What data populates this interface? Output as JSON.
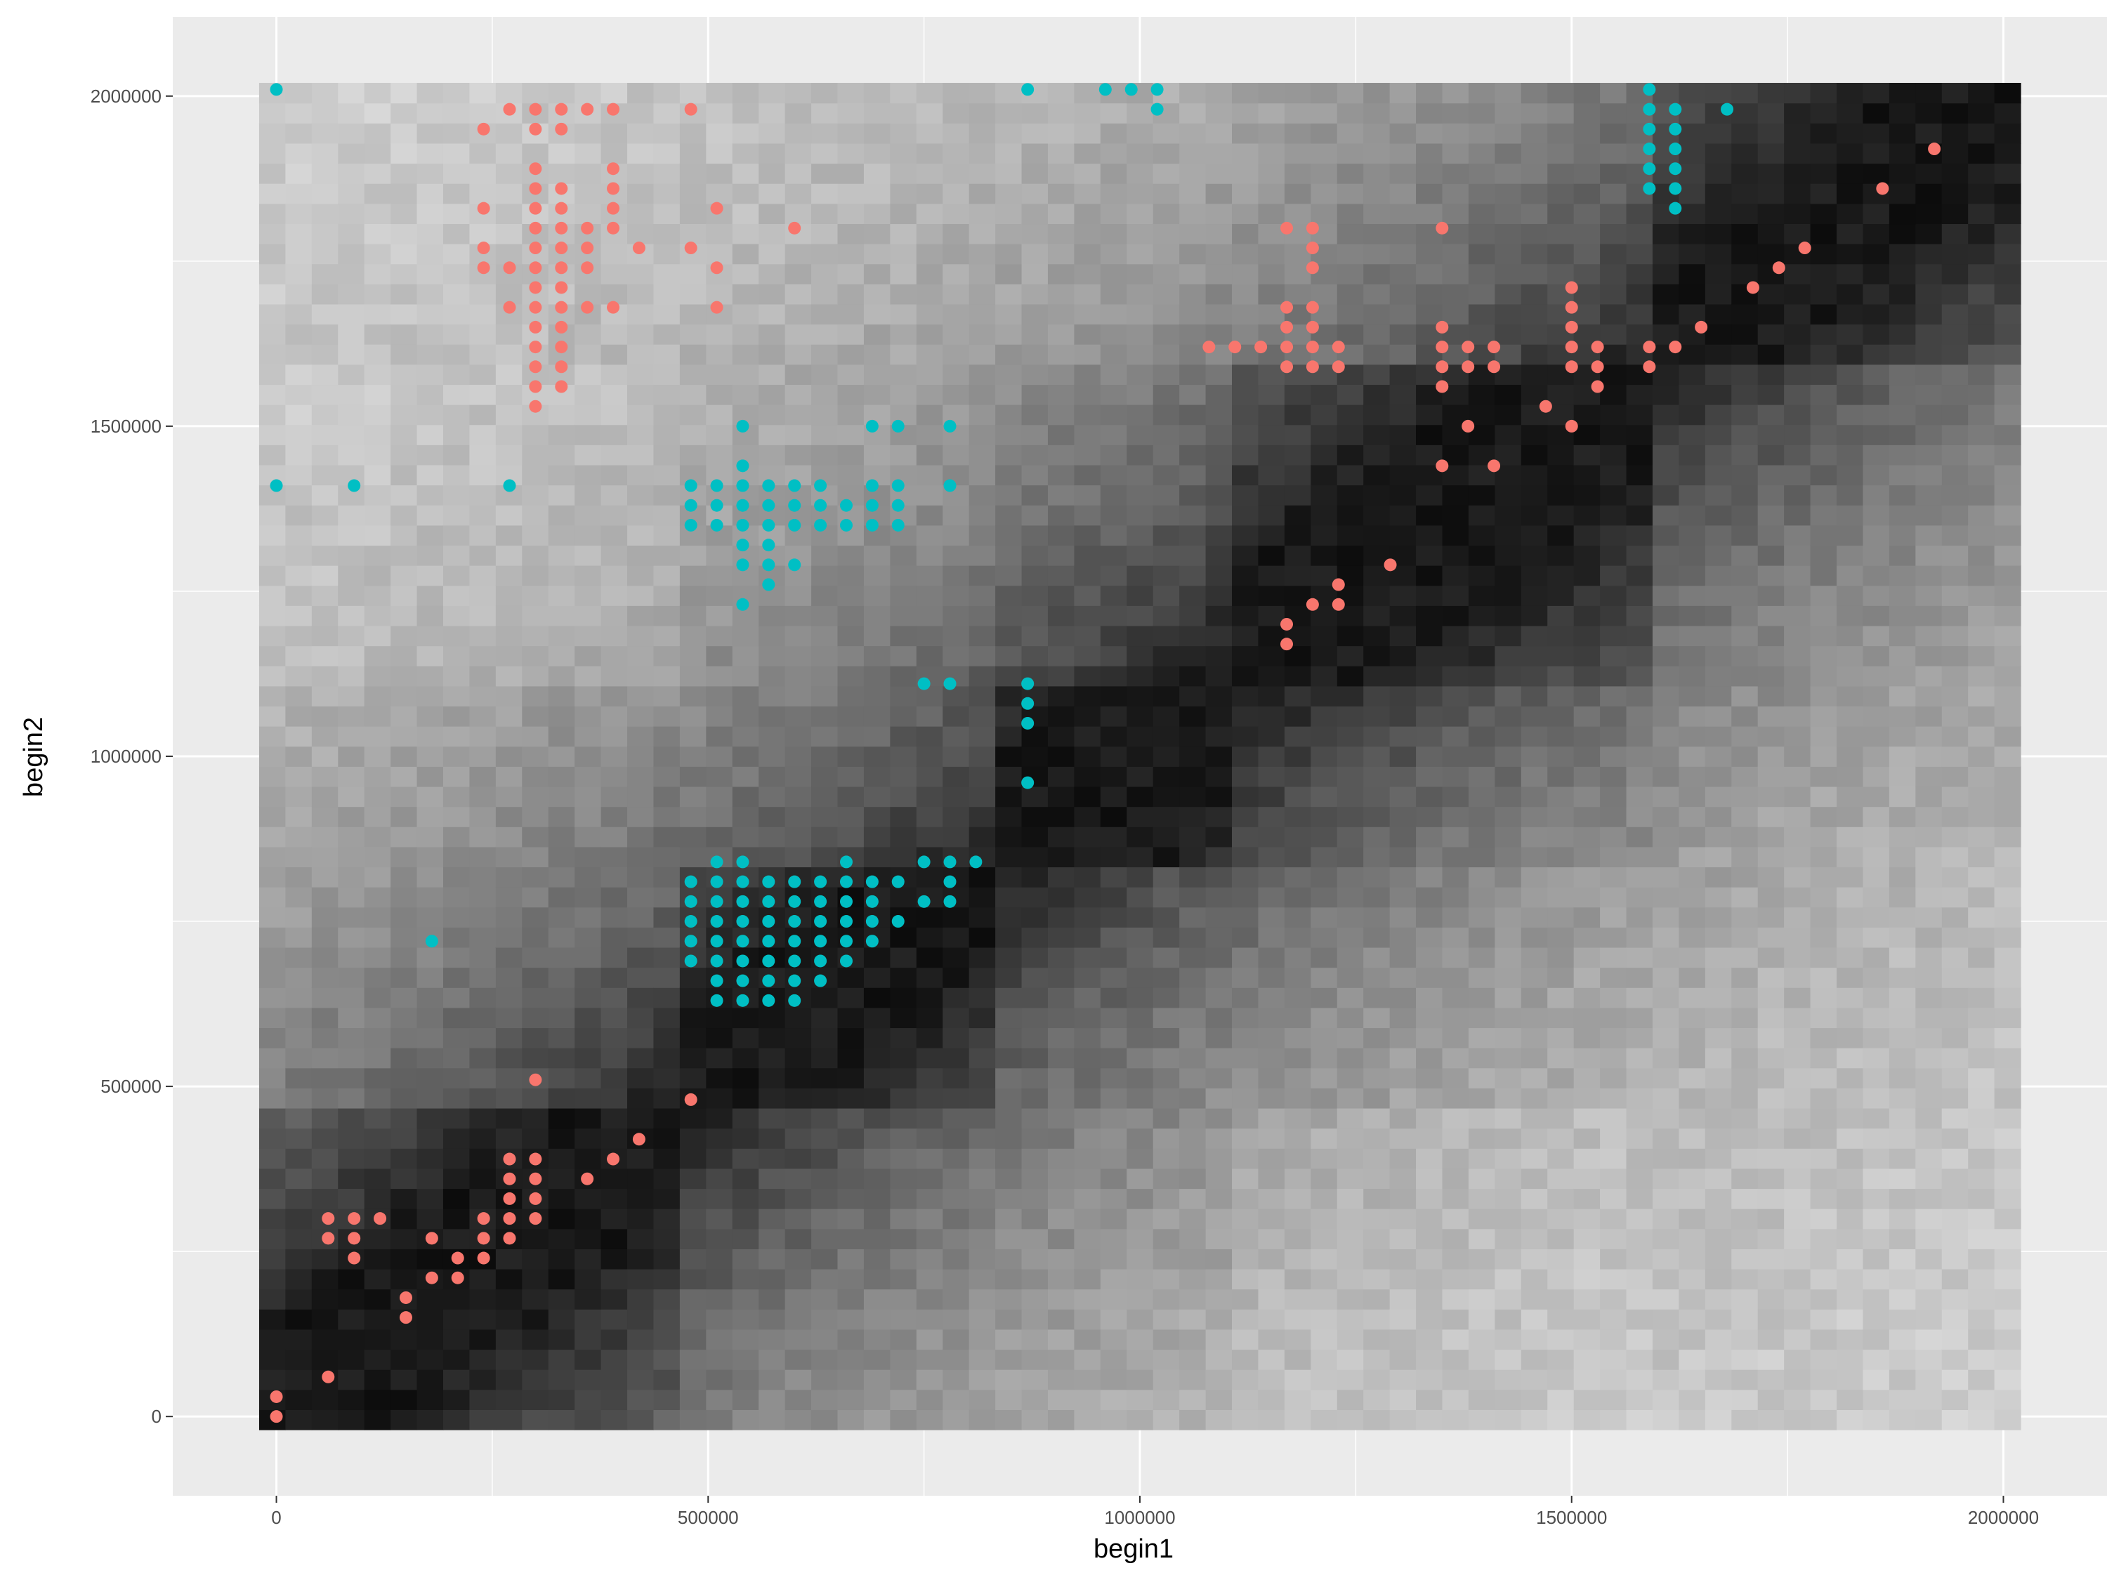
{
  "chart_data": {
    "type": "heatmap",
    "title": "",
    "xlabel": "begin1",
    "ylabel": "begin2",
    "xlim": [
      -120000,
      2120000
    ],
    "ylim": [
      -120000,
      2120000
    ],
    "heatmap_extent": {
      "x": [
        -20000,
        2020000
      ],
      "y": [
        -20000,
        2020000
      ]
    },
    "heatmap_bins": 67,
    "heatmap_scale": "grayscale, darker = higher contact frequency (diagonal darkest)",
    "x_ticks": [
      0,
      500000,
      1000000,
      1500000,
      2000000
    ],
    "x_tick_labels": [
      "0",
      "500000",
      "1000000",
      "1500000",
      "2000000"
    ],
    "y_ticks": [
      0,
      500000,
      1000000,
      1500000,
      2000000
    ],
    "y_tick_labels": [
      "0",
      "500000",
      "1000000",
      "1500000",
      "2000000"
    ],
    "grid": true,
    "legend": "none",
    "colors": {
      "panel": "#ebebeb",
      "grid": "#ffffff",
      "series_red": "#f8766d",
      "series_cyan": "#00bfc4"
    },
    "series": [
      {
        "name": "red",
        "color": "#f8766d",
        "points": [
          [
            0,
            0
          ],
          [
            0,
            30000
          ],
          [
            60000,
            60000
          ],
          [
            60000,
            270000
          ],
          [
            60000,
            300000
          ],
          [
            90000,
            240000
          ],
          [
            90000,
            270000
          ],
          [
            90000,
            300000
          ],
          [
            120000,
            300000
          ],
          [
            150000,
            150000
          ],
          [
            150000,
            180000
          ],
          [
            180000,
            210000
          ],
          [
            180000,
            270000
          ],
          [
            210000,
            210000
          ],
          [
            210000,
            240000
          ],
          [
            240000,
            240000
          ],
          [
            240000,
            270000
          ],
          [
            240000,
            300000
          ],
          [
            270000,
            270000
          ],
          [
            270000,
            300000
          ],
          [
            270000,
            330000
          ],
          [
            270000,
            360000
          ],
          [
            270000,
            390000
          ],
          [
            300000,
            300000
          ],
          [
            300000,
            330000
          ],
          [
            300000,
            360000
          ],
          [
            300000,
            390000
          ],
          [
            300000,
            510000
          ],
          [
            360000,
            360000
          ],
          [
            390000,
            390000
          ],
          [
            420000,
            420000
          ],
          [
            480000,
            480000
          ],
          [
            240000,
            1950000
          ],
          [
            240000,
            1830000
          ],
          [
            240000,
            1770000
          ],
          [
            240000,
            1740000
          ],
          [
            270000,
            1980000
          ],
          [
            270000,
            1740000
          ],
          [
            270000,
            1680000
          ],
          [
            300000,
            1980000
          ],
          [
            300000,
            1950000
          ],
          [
            300000,
            1890000
          ],
          [
            300000,
            1860000
          ],
          [
            300000,
            1830000
          ],
          [
            300000,
            1800000
          ],
          [
            300000,
            1770000
          ],
          [
            300000,
            1740000
          ],
          [
            300000,
            1710000
          ],
          [
            300000,
            1680000
          ],
          [
            300000,
            1650000
          ],
          [
            300000,
            1620000
          ],
          [
            300000,
            1590000
          ],
          [
            300000,
            1560000
          ],
          [
            300000,
            1530000
          ],
          [
            330000,
            1980000
          ],
          [
            330000,
            1950000
          ],
          [
            330000,
            1860000
          ],
          [
            330000,
            1830000
          ],
          [
            330000,
            1800000
          ],
          [
            330000,
            1770000
          ],
          [
            330000,
            1740000
          ],
          [
            330000,
            1710000
          ],
          [
            330000,
            1680000
          ],
          [
            330000,
            1650000
          ],
          [
            330000,
            1620000
          ],
          [
            330000,
            1590000
          ],
          [
            330000,
            1560000
          ],
          [
            360000,
            1980000
          ],
          [
            360000,
            1800000
          ],
          [
            360000,
            1770000
          ],
          [
            360000,
            1740000
          ],
          [
            360000,
            1680000
          ],
          [
            390000,
            1980000
          ],
          [
            390000,
            1890000
          ],
          [
            390000,
            1860000
          ],
          [
            390000,
            1830000
          ],
          [
            390000,
            1800000
          ],
          [
            390000,
            1680000
          ],
          [
            420000,
            1770000
          ],
          [
            480000,
            1980000
          ],
          [
            480000,
            1770000
          ],
          [
            510000,
            1830000
          ],
          [
            510000,
            1740000
          ],
          [
            510000,
            1680000
          ],
          [
            600000,
            1800000
          ],
          [
            1080000,
            1620000
          ],
          [
            1110000,
            1620000
          ],
          [
            1140000,
            1620000
          ],
          [
            1170000,
            1800000
          ],
          [
            1170000,
            1680000
          ],
          [
            1170000,
            1650000
          ],
          [
            1170000,
            1620000
          ],
          [
            1170000,
            1590000
          ],
          [
            1170000,
            1200000
          ],
          [
            1170000,
            1170000
          ],
          [
            1200000,
            1800000
          ],
          [
            1200000,
            1770000
          ],
          [
            1200000,
            1740000
          ],
          [
            1200000,
            1680000
          ],
          [
            1200000,
            1650000
          ],
          [
            1200000,
            1620000
          ],
          [
            1200000,
            1590000
          ],
          [
            1200000,
            1230000
          ],
          [
            1230000,
            1620000
          ],
          [
            1230000,
            1590000
          ],
          [
            1230000,
            1260000
          ],
          [
            1230000,
            1230000
          ],
          [
            1290000,
            1290000
          ],
          [
            1350000,
            1800000
          ],
          [
            1350000,
            1650000
          ],
          [
            1350000,
            1620000
          ],
          [
            1350000,
            1590000
          ],
          [
            1350000,
            1560000
          ],
          [
            1350000,
            1440000
          ],
          [
            1380000,
            1620000
          ],
          [
            1380000,
            1590000
          ],
          [
            1380000,
            1500000
          ],
          [
            1410000,
            1620000
          ],
          [
            1410000,
            1590000
          ],
          [
            1410000,
            1440000
          ],
          [
            1470000,
            1530000
          ],
          [
            1500000,
            1710000
          ],
          [
            1500000,
            1680000
          ],
          [
            1500000,
            1650000
          ],
          [
            1500000,
            1620000
          ],
          [
            1500000,
            1590000
          ],
          [
            1500000,
            1500000
          ],
          [
            1530000,
            1620000
          ],
          [
            1530000,
            1590000
          ],
          [
            1530000,
            1560000
          ],
          [
            1590000,
            1620000
          ],
          [
            1590000,
            1590000
          ],
          [
            1620000,
            1620000
          ],
          [
            1650000,
            1650000
          ],
          [
            1710000,
            1710000
          ],
          [
            1740000,
            1740000
          ],
          [
            1770000,
            1770000
          ],
          [
            1860000,
            1860000
          ],
          [
            1920000,
            1920000
          ]
        ]
      },
      {
        "name": "cyan",
        "color": "#00bfc4",
        "points": [
          [
            0,
            2010000
          ],
          [
            0,
            1410000
          ],
          [
            90000,
            1410000
          ],
          [
            270000,
            1410000
          ],
          [
            180000,
            720000
          ],
          [
            870000,
            2010000
          ],
          [
            960000,
            2010000
          ],
          [
            990000,
            2010000
          ],
          [
            1020000,
            2010000
          ],
          [
            1020000,
            1980000
          ],
          [
            1590000,
            2010000
          ],
          [
            1590000,
            1980000
          ],
          [
            1590000,
            1950000
          ],
          [
            1590000,
            1920000
          ],
          [
            1590000,
            1890000
          ],
          [
            1590000,
            1860000
          ],
          [
            1620000,
            1980000
          ],
          [
            1620000,
            1950000
          ],
          [
            1620000,
            1920000
          ],
          [
            1620000,
            1890000
          ],
          [
            1620000,
            1860000
          ],
          [
            1620000,
            1830000
          ],
          [
            1680000,
            1980000
          ],
          [
            540000,
            1500000
          ],
          [
            690000,
            1500000
          ],
          [
            720000,
            1500000
          ],
          [
            780000,
            1500000
          ],
          [
            540000,
            1440000
          ],
          [
            480000,
            1410000
          ],
          [
            510000,
            1410000
          ],
          [
            540000,
            1410000
          ],
          [
            570000,
            1410000
          ],
          [
            600000,
            1410000
          ],
          [
            630000,
            1410000
          ],
          [
            690000,
            1410000
          ],
          [
            720000,
            1410000
          ],
          [
            780000,
            1410000
          ],
          [
            480000,
            1380000
          ],
          [
            510000,
            1380000
          ],
          [
            540000,
            1380000
          ],
          [
            570000,
            1380000
          ],
          [
            600000,
            1380000
          ],
          [
            630000,
            1380000
          ],
          [
            660000,
            1380000
          ],
          [
            690000,
            1380000
          ],
          [
            720000,
            1380000
          ],
          [
            480000,
            1350000
          ],
          [
            510000,
            1350000
          ],
          [
            540000,
            1350000
          ],
          [
            570000,
            1350000
          ],
          [
            600000,
            1350000
          ],
          [
            630000,
            1350000
          ],
          [
            660000,
            1350000
          ],
          [
            690000,
            1350000
          ],
          [
            720000,
            1350000
          ],
          [
            540000,
            1320000
          ],
          [
            570000,
            1320000
          ],
          [
            540000,
            1290000
          ],
          [
            570000,
            1290000
          ],
          [
            600000,
            1290000
          ],
          [
            570000,
            1260000
          ],
          [
            540000,
            1230000
          ],
          [
            750000,
            1110000
          ],
          [
            780000,
            1110000
          ],
          [
            870000,
            1110000
          ],
          [
            870000,
            1080000
          ],
          [
            870000,
            1050000
          ],
          [
            870000,
            960000
          ],
          [
            510000,
            840000
          ],
          [
            540000,
            840000
          ],
          [
            660000,
            840000
          ],
          [
            750000,
            840000
          ],
          [
            780000,
            840000
          ],
          [
            810000,
            840000
          ],
          [
            480000,
            810000
          ],
          [
            510000,
            810000
          ],
          [
            540000,
            810000
          ],
          [
            570000,
            810000
          ],
          [
            600000,
            810000
          ],
          [
            630000,
            810000
          ],
          [
            660000,
            810000
          ],
          [
            690000,
            810000
          ],
          [
            720000,
            810000
          ],
          [
            780000,
            810000
          ],
          [
            480000,
            780000
          ],
          [
            510000,
            780000
          ],
          [
            540000,
            780000
          ],
          [
            570000,
            780000
          ],
          [
            600000,
            780000
          ],
          [
            630000,
            780000
          ],
          [
            660000,
            780000
          ],
          [
            690000,
            780000
          ],
          [
            750000,
            780000
          ],
          [
            780000,
            780000
          ],
          [
            480000,
            750000
          ],
          [
            510000,
            750000
          ],
          [
            540000,
            750000
          ],
          [
            570000,
            750000
          ],
          [
            600000,
            750000
          ],
          [
            630000,
            750000
          ],
          [
            660000,
            750000
          ],
          [
            690000,
            750000
          ],
          [
            720000,
            750000
          ],
          [
            480000,
            720000
          ],
          [
            510000,
            720000
          ],
          [
            540000,
            720000
          ],
          [
            570000,
            720000
          ],
          [
            600000,
            720000
          ],
          [
            630000,
            720000
          ],
          [
            660000,
            720000
          ],
          [
            690000,
            720000
          ],
          [
            480000,
            690000
          ],
          [
            510000,
            690000
          ],
          [
            540000,
            690000
          ],
          [
            570000,
            690000
          ],
          [
            600000,
            690000
          ],
          [
            630000,
            690000
          ],
          [
            660000,
            690000
          ],
          [
            510000,
            660000
          ],
          [
            540000,
            660000
          ],
          [
            570000,
            660000
          ],
          [
            600000,
            660000
          ],
          [
            630000,
            660000
          ],
          [
            510000,
            630000
          ],
          [
            540000,
            630000
          ],
          [
            570000,
            630000
          ],
          [
            600000,
            630000
          ]
        ]
      }
    ]
  }
}
